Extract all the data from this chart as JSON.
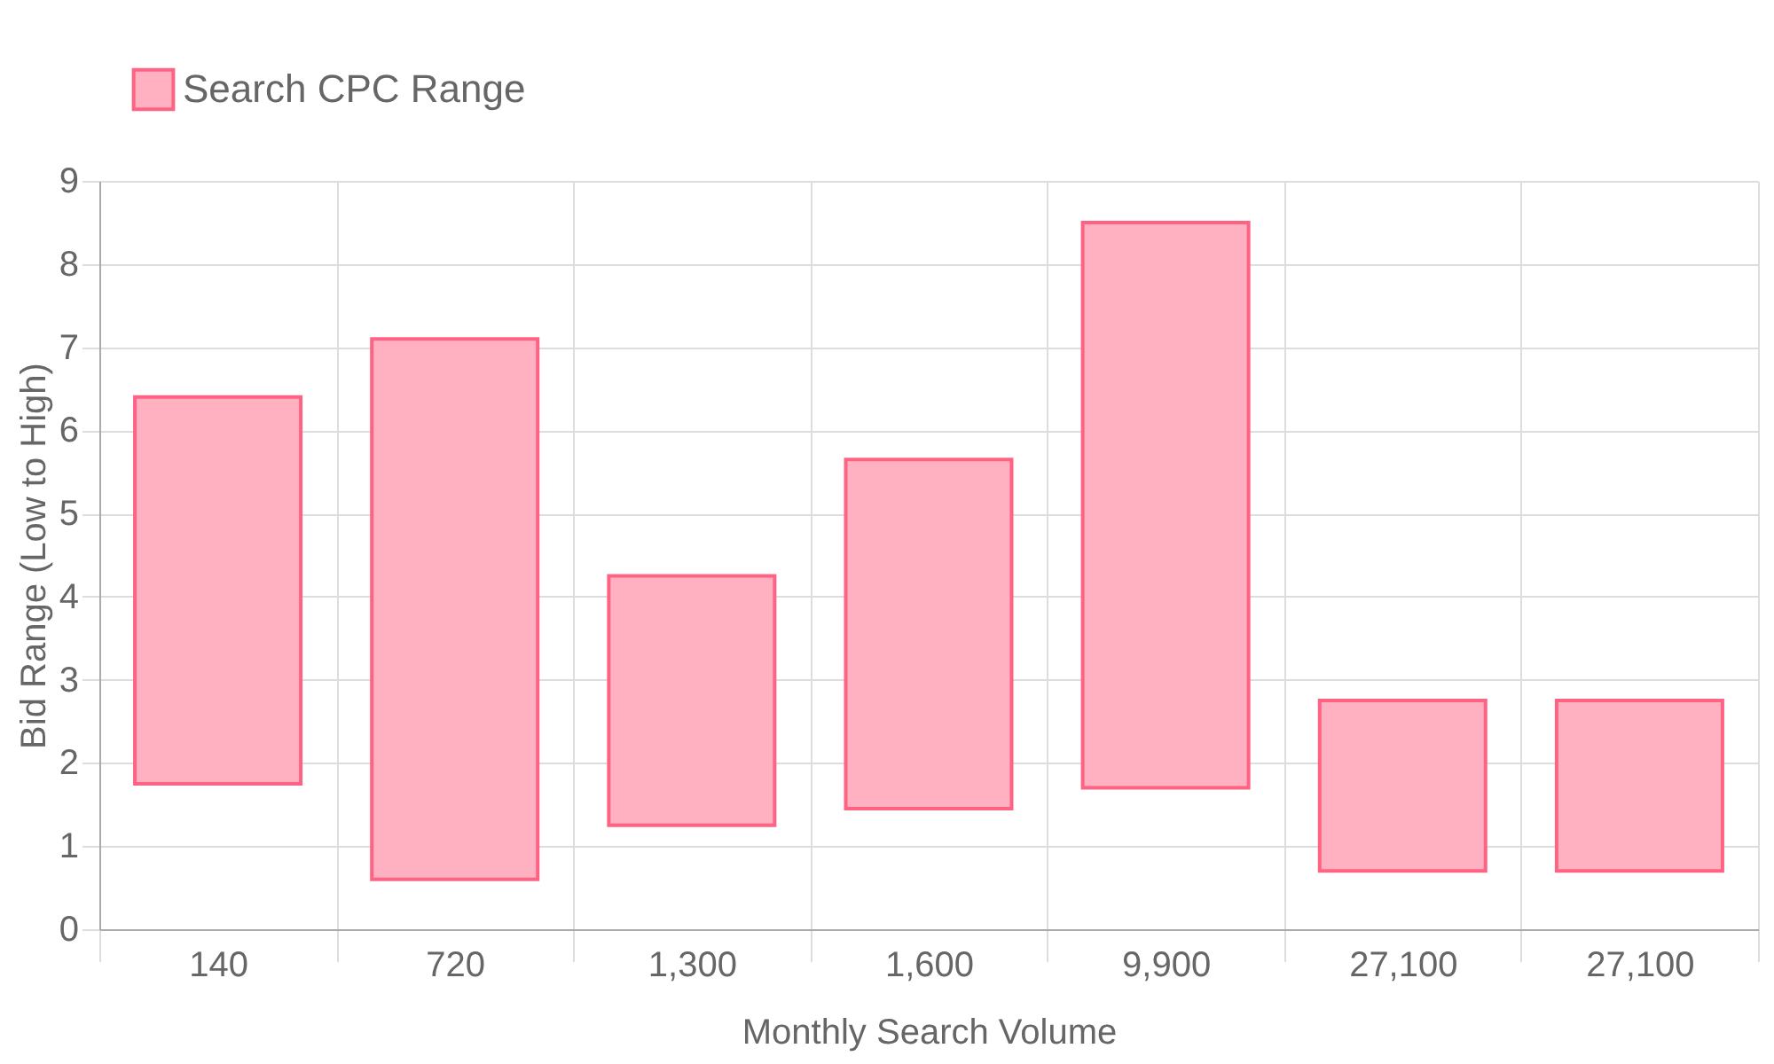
{
  "chart_data": {
    "type": "bar",
    "xlabel": "Monthly Search Volume",
    "ylabel": "Bid Range (Low to High)",
    "categories": [
      "140",
      "720",
      "1,300",
      "1,600",
      "9,900",
      "27,100",
      "27,100"
    ],
    "series": [
      {
        "name": "Search CPC Range",
        "color": "#ffb1c1",
        "values": [
          4.65,
          6.5,
          3.0,
          4.2,
          6.8,
          2.05,
          2.05
        ],
        "base": [
          1.75,
          0.6,
          1.25,
          1.45,
          1.7,
          0.7,
          0.7
        ]
      }
    ],
    "ylim": [
      0,
      9
    ],
    "yticks": [
      0,
      1,
      2,
      3,
      4,
      5,
      6,
      7,
      8,
      9
    ],
    "grid": true,
    "legend": "top"
  }
}
